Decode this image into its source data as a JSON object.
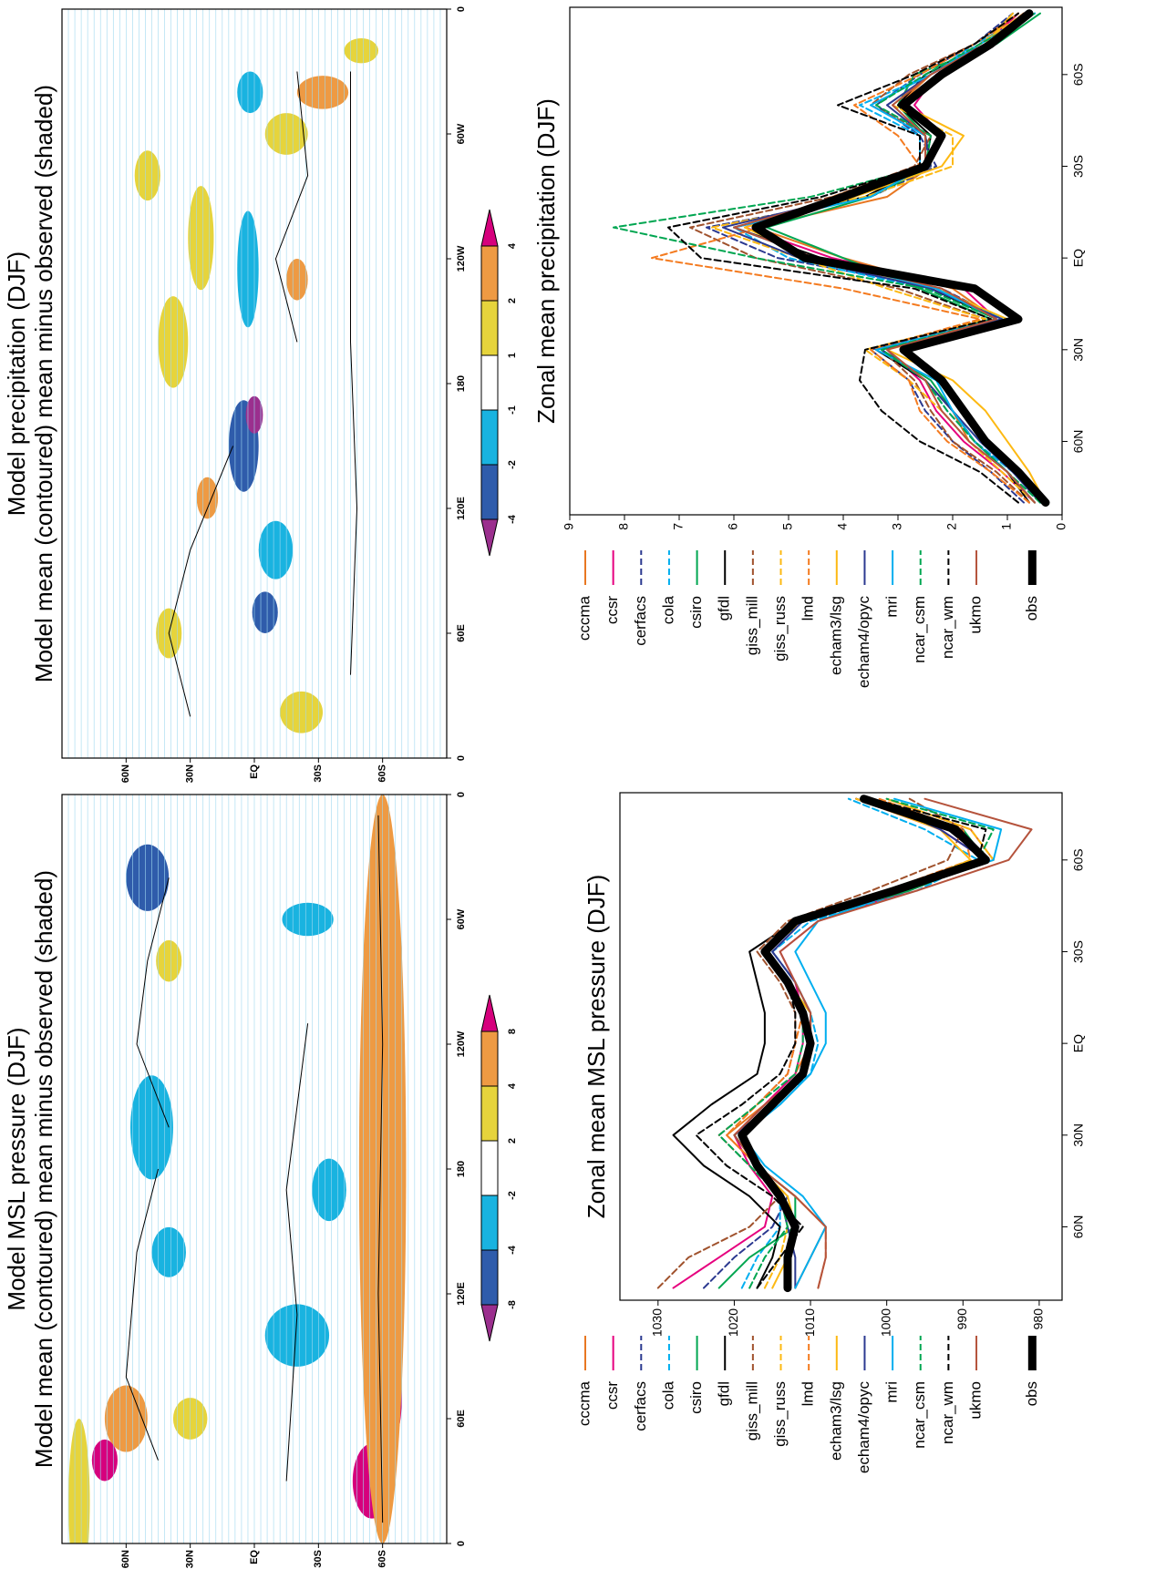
{
  "chart_data": [
    {
      "type": "map",
      "title": "Model precipitation (DJF)",
      "subtitle": "Model mean (contoured)  mean minus observed (shaded)",
      "xlim": [
        0,
        360
      ],
      "ylim": [
        90,
        -90
      ],
      "xticks": [
        0,
        {
          "value": 60,
          "label": "60E"
        },
        {
          "value": 120,
          "label": "120E"
        },
        180,
        {
          "value": 240,
          "label": "120W"
        },
        {
          "value": 300,
          "label": "60W"
        },
        {
          "value": 360,
          "label": "0"
        }
      ],
      "yticks": [
        {
          "value": 60,
          "label": "60N"
        },
        {
          "value": 30,
          "label": "30N"
        },
        {
          "value": 0,
          "label": "EQ"
        },
        {
          "value": -30,
          "label": "30S"
        },
        {
          "value": -60,
          "label": "60S"
        }
      ],
      "colorbar": {
        "levels": [
          -4,
          -2,
          -1,
          1,
          2,
          4
        ],
        "colors": [
          "#9b2f8e",
          "#2f5cab",
          "#19b3e0",
          "#ffffff",
          "#e6d43c",
          "#ee9a43",
          "#d6007d"
        ]
      }
    },
    {
      "type": "line",
      "title": "Zonal mean precipitation (DJF)",
      "xlim": [
        84,
        -82
      ],
      "ylim": [
        0,
        9
      ],
      "xticks": [
        {
          "value": 60,
          "label": "60N"
        },
        {
          "value": 30,
          "label": "30N"
        },
        {
          "value": 0,
          "label": "EQ"
        },
        {
          "value": -30,
          "label": "30S"
        },
        {
          "value": -60,
          "label": "60S"
        }
      ],
      "yticks": [
        0,
        1,
        2,
        3,
        4,
        5,
        6,
        7,
        8,
        9
      ],
      "x": [
        80,
        70,
        60,
        50,
        40,
        30,
        20,
        10,
        0,
        -10,
        -20,
        -30,
        -40,
        -50,
        -60,
        -70,
        -80
      ],
      "series": [
        {
          "name": "cccma",
          "color": "#e87722",
          "dashed": false,
          "values": [
            0.5,
            1.0,
            1.7,
            2.0,
            2.5,
            3.3,
            1.2,
            2.0,
            4.0,
            5.6,
            3.2,
            2.4,
            2.5,
            3.0,
            2.4,
            1.5,
            0.8
          ]
        },
        {
          "name": "ccsr",
          "color": "#e6007e",
          "dashed": false,
          "values": [
            0.5,
            1.1,
            1.8,
            2.3,
            2.6,
            3.2,
            1.2,
            1.8,
            4.2,
            5.8,
            4.0,
            2.5,
            2.2,
            2.7,
            2.3,
            1.4,
            0.8
          ]
        },
        {
          "name": "cerfacs",
          "color": "#2b3990",
          "dashed": true,
          "values": [
            0.7,
            1.3,
            2.0,
            2.5,
            2.8,
            3.5,
            1.1,
            2.2,
            5.2,
            6.5,
            3.5,
            2.3,
            2.6,
            3.4,
            2.6,
            1.6,
            0.9
          ]
        },
        {
          "name": "cola",
          "color": "#00aeef",
          "dashed": true,
          "values": [
            0.4,
            0.9,
            1.6,
            2.1,
            2.5,
            3.4,
            1.0,
            2.5,
            5.0,
            6.0,
            3.8,
            2.6,
            2.6,
            3.7,
            2.4,
            1.6,
            0.5
          ]
        },
        {
          "name": "csiro",
          "color": "#00a651",
          "dashed": false,
          "values": [
            0.5,
            1.0,
            1.6,
            2.0,
            2.4,
            3.3,
            1.3,
            2.6,
            4.0,
            5.4,
            3.5,
            2.4,
            2.5,
            3.0,
            2.7,
            1.2,
            0.4
          ]
        },
        {
          "name": "gfdl",
          "color": "#000000",
          "dashed": false,
          "values": [
            0.6,
            1.0,
            1.6,
            2.0,
            2.5,
            3.4,
            1.2,
            2.4,
            4.4,
            6.0,
            3.6,
            2.5,
            2.4,
            3.0,
            2.5,
            1.4,
            0.7
          ]
        },
        {
          "name": "giss_mill",
          "color": "#a0522d",
          "dashed": true,
          "values": [
            0.6,
            1.2,
            2.0,
            2.4,
            2.7,
            3.3,
            1.4,
            3.0,
            5.6,
            6.8,
            4.2,
            2.7,
            2.4,
            3.5,
            2.8,
            1.6,
            0.8
          ]
        },
        {
          "name": "giss_russ",
          "color": "#fdb913",
          "dashed": true,
          "values": [
            0.5,
            1.1,
            1.7,
            2.2,
            2.8,
            3.6,
            1.4,
            3.2,
            4.8,
            6.4,
            3.6,
            2.0,
            2.0,
            3.1,
            2.4,
            1.5,
            0.7
          ]
        },
        {
          "name": "lmd",
          "color": "#f47b20",
          "dashed": true,
          "values": [
            0.6,
            1.3,
            2.1,
            2.6,
            2.8,
            3.5,
            1.5,
            4.0,
            7.5,
            5.5,
            4.2,
            2.6,
            3.0,
            3.8,
            2.6,
            1.6,
            0.8
          ]
        },
        {
          "name": "echam3/lsg",
          "color": "#fdb913",
          "dashed": false,
          "values": [
            0.3,
            0.6,
            1.0,
            1.4,
            2.0,
            3.2,
            1.0,
            2.3,
            4.6,
            5.8,
            3.8,
            2.2,
            1.8,
            2.9,
            2.1,
            1.4,
            0.9
          ]
        },
        {
          "name": "echam4/opyc",
          "color": "#2b3990",
          "dashed": false,
          "values": [
            0.4,
            0.9,
            1.5,
            2.0,
            2.5,
            3.3,
            1.1,
            2.4,
            4.8,
            6.2,
            3.9,
            2.4,
            2.5,
            3.2,
            2.4,
            1.4,
            0.5
          ]
        },
        {
          "name": "mri",
          "color": "#00aeef",
          "dashed": false,
          "values": [
            0.5,
            1.0,
            1.6,
            2.0,
            2.3,
            3.4,
            1.2,
            2.3,
            4.5,
            6.0,
            3.5,
            2.5,
            2.5,
            3.5,
            2.4,
            1.5,
            0.5
          ]
        },
        {
          "name": "ncar_csm",
          "color": "#00a651",
          "dashed": true,
          "values": [
            0.4,
            1.0,
            1.6,
            2.1,
            2.5,
            3.3,
            1.2,
            2.5,
            5.6,
            8.2,
            4.6,
            2.5,
            2.4,
            3.4,
            2.5,
            1.5,
            0.5
          ]
        },
        {
          "name": "ncar_wm",
          "color": "#000000",
          "dashed": true,
          "values": [
            0.8,
            1.5,
            2.6,
            3.3,
            3.7,
            3.6,
            1.3,
            2.7,
            6.6,
            7.2,
            4.4,
            2.6,
            2.6,
            4.1,
            2.7,
            1.6,
            0.8
          ]
        },
        {
          "name": "ukmo",
          "color": "#b5533c",
          "dashed": false,
          "values": [
            0.5,
            1.0,
            1.7,
            2.2,
            2.5,
            3.2,
            1.2,
            2.2,
            4.5,
            6.0,
            4.0,
            2.5,
            2.5,
            3.1,
            2.4,
            1.4,
            0.7
          ]
        },
        {
          "name": "obs",
          "color": "#000000",
          "dashed": false,
          "thick": true,
          "values": [
            0.3,
            0.8,
            1.4,
            1.8,
            2.2,
            2.9,
            0.8,
            1.6,
            4.7,
            5.6,
            4.0,
            2.5,
            2.2,
            2.9,
            2.2,
            1.3,
            0.6
          ]
        }
      ]
    },
    {
      "type": "map",
      "title": "Model MSL pressure (DJF)",
      "subtitle": "Model mean (contoured)  mean minus observed (shaded)",
      "xlim": [
        0,
        360
      ],
      "ylim": [
        90,
        -90
      ],
      "xticks": [
        0,
        {
          "value": 60,
          "label": "60E"
        },
        {
          "value": 120,
          "label": "120E"
        },
        180,
        {
          "value": 240,
          "label": "120W"
        },
        {
          "value": 300,
          "label": "60W"
        },
        {
          "value": 360,
          "label": "0"
        }
      ],
      "yticks": [
        {
          "value": 60,
          "label": "60N"
        },
        {
          "value": 30,
          "label": "30N"
        },
        {
          "value": 0,
          "label": "EQ"
        },
        {
          "value": -30,
          "label": "30S"
        },
        {
          "value": -60,
          "label": "60S"
        }
      ],
      "colorbar": {
        "levels": [
          -8,
          -4,
          -2,
          2,
          4,
          8
        ],
        "colors": [
          "#9b2f8e",
          "#2f5cab",
          "#19b3e0",
          "#ffffff",
          "#e6d43c",
          "#ee9a43",
          "#d6007d"
        ]
      }
    },
    {
      "type": "line",
      "title": "Zonal mean MSL pressure (DJF)",
      "xlim": [
        84,
        -82
      ],
      "ylim": [
        977,
        1035
      ],
      "xticks": [
        {
          "value": 60,
          "label": "60N"
        },
        {
          "value": 30,
          "label": "30N"
        },
        {
          "value": 0,
          "label": "EQ"
        },
        {
          "value": -30,
          "label": "30S"
        },
        {
          "value": -60,
          "label": "60S"
        }
      ],
      "yticks": [
        980,
        990,
        1000,
        1010,
        1020,
        1030
      ],
      "x": [
        80,
        70,
        60,
        50,
        40,
        30,
        20,
        10,
        0,
        -10,
        -20,
        -30,
        -40,
        -50,
        -60,
        -70,
        -80
      ],
      "series": [
        {
          "name": "cccma",
          "color": "#e87722",
          "dashed": false,
          "values": [
            1012,
            1010,
            1008,
            1012,
            1017,
            1021,
            1016,
            1012,
            1010,
            1011,
            1013,
            1016,
            1011,
            998,
            986,
            989,
            1000
          ]
        },
        {
          "name": "ccsr",
          "color": "#e6007e",
          "dashed": false,
          "values": [
            1028,
            1022,
            1016,
            1015,
            1018,
            1020,
            1016,
            1012,
            1011,
            1011,
            1012,
            1014,
            1009,
            997,
            987,
            993,
            1004
          ]
        },
        {
          "name": "cerfacs",
          "color": "#2b3990",
          "dashed": true,
          "values": [
            1024,
            1020,
            1015,
            1013,
            1017,
            1020,
            1015,
            1011,
            1010,
            1010,
            1012,
            1015,
            1011,
            998,
            987,
            991,
            1002
          ]
        },
        {
          "name": "cola",
          "color": "#00aeef",
          "dashed": true,
          "values": [
            1019,
            1017,
            1014,
            1014,
            1017,
            1020,
            1015,
            1010,
            1009,
            1010,
            1012,
            1015,
            1010,
            996,
            988,
            995,
            1005
          ]
        },
        {
          "name": "csiro",
          "color": "#00a651",
          "dashed": false,
          "values": [
            1022,
            1018,
            1012,
            1012,
            1017,
            1020,
            1015,
            1011,
            1010,
            1010,
            1013,
            1016,
            1011,
            997,
            987,
            990,
            1002
          ]
        },
        {
          "name": "gfdl",
          "color": "#000000",
          "dashed": false,
          "values": [
            1017,
            1015,
            1014,
            1018,
            1024,
            1028,
            1023,
            1017,
            1016,
            1016,
            1017,
            1018,
            1012,
            998,
            987,
            992,
            1004
          ]
        },
        {
          "name": "giss_mill",
          "color": "#a0522d",
          "dashed": true,
          "values": [
            1030,
            1026,
            1018,
            1014,
            1018,
            1022,
            1017,
            1013,
            1012,
            1012,
            1014,
            1017,
            1013,
            1002,
            992,
            990,
            997
          ]
        },
        {
          "name": "giss_russ",
          "color": "#fdb913",
          "dashed": true,
          "values": [
            1016,
            1014,
            1013,
            1014,
            1017,
            1020,
            1015,
            1011,
            1010,
            1010,
            1013,
            1016,
            1011,
            998,
            986,
            989,
            1000
          ]
        },
        {
          "name": "lmd",
          "color": "#f47b20",
          "dashed": true,
          "values": [
            1009,
            1008,
            1008,
            1012,
            1017,
            1021,
            1017,
            1013,
            1012,
            1011,
            1013,
            1016,
            1012,
            1000,
            989,
            990,
            1001
          ]
        },
        {
          "name": "echam3/lsg",
          "color": "#fdb913",
          "dashed": false,
          "values": [
            1015,
            1013,
            1012,
            1013,
            1017,
            1020,
            1015,
            1011,
            1010,
            1010,
            1013,
            1016,
            1012,
            999,
            989,
            993,
            1004
          ]
        },
        {
          "name": "echam4/opyc",
          "color": "#2b3990",
          "dashed": false,
          "values": [
            1012,
            1012,
            1013,
            1014,
            1017,
            1020,
            1015,
            1011,
            1010,
            1010,
            1012,
            1015,
            1011,
            998,
            987,
            993,
            1002
          ]
        },
        {
          "name": "mri",
          "color": "#00aeef",
          "dashed": false,
          "values": [
            1012,
            1010,
            1008,
            1011,
            1016,
            1019,
            1014,
            1010,
            1008,
            1008,
            1010,
            1012,
            1009,
            998,
            986,
            985,
            999
          ]
        },
        {
          "name": "ncar_csm",
          "color": "#00a651",
          "dashed": true,
          "values": [
            1018,
            1016,
            1013,
            1014,
            1018,
            1022,
            1017,
            1012,
            1011,
            1011,
            1013,
            1016,
            1012,
            999,
            988,
            986,
            1000
          ]
        },
        {
          "name": "ncar_wm",
          "color": "#000000",
          "dashed": true,
          "values": [
            1017,
            1014,
            1011,
            1015,
            1021,
            1025,
            1019,
            1014,
            1012,
            1012,
            1013,
            1016,
            1012,
            999,
            988,
            987,
            1002
          ]
        },
        {
          "name": "ukmo",
          "color": "#b5533c",
          "dashed": false,
          "values": [
            1009,
            1008,
            1008,
            1012,
            1017,
            1020,
            1016,
            1011,
            1010,
            1010,
            1012,
            1014,
            1009,
            996,
            984,
            981,
            995
          ]
        },
        {
          "name": "obs",
          "color": "#000000",
          "dashed": false,
          "thick": true,
          "values": [
            1013,
            1013,
            1012,
            1014,
            1017,
            1019,
            1015,
            1011,
            1010,
            1011,
            1013,
            1016,
            1012,
            999,
            987,
            991,
            1003
          ]
        }
      ]
    }
  ]
}
